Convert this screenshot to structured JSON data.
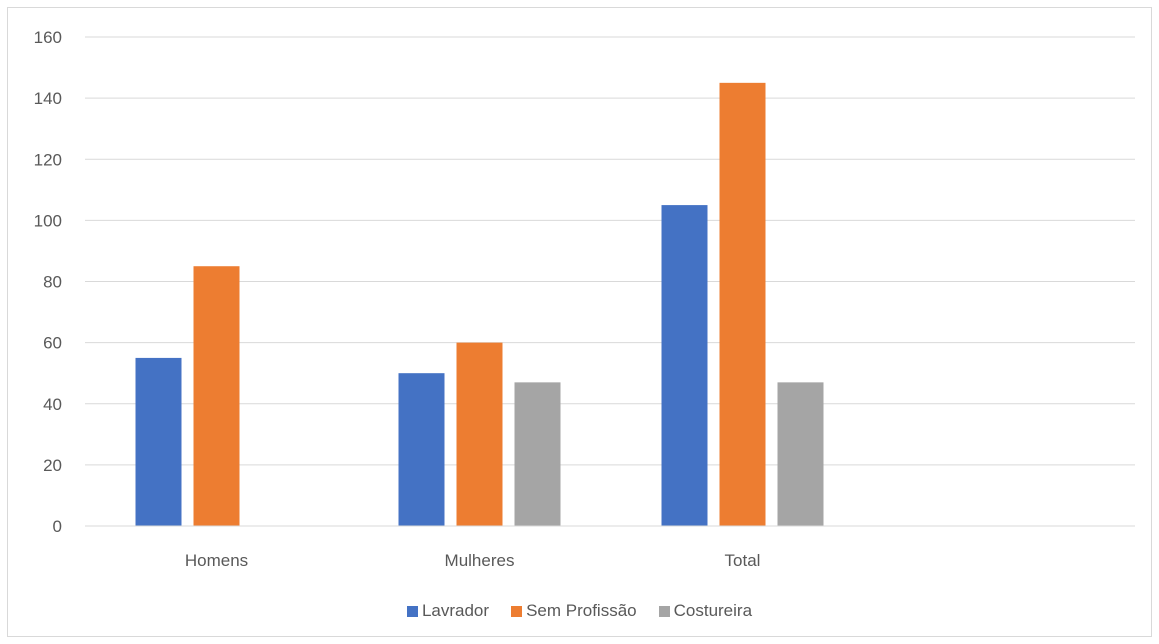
{
  "chart_data": {
    "type": "bar",
    "categories": [
      "Homens",
      "Mulheres",
      "Total"
    ],
    "series": [
      {
        "name": "Lavrador",
        "values": [
          55,
          50,
          105
        ],
        "color": "#4472c4"
      },
      {
        "name": "Sem Profissão",
        "values": [
          85,
          60,
          145
        ],
        "color": "#ed7d31"
      },
      {
        "name": "Costureira",
        "values": [
          null,
          47,
          47
        ],
        "color": "#a5a5a5"
      }
    ],
    "ylim": [
      0,
      160
    ],
    "yticks": [
      "0",
      "20",
      "40",
      "60",
      "80",
      "100",
      "120",
      "140",
      "160"
    ],
    "grid": true,
    "legend_position": "bottom",
    "title": "",
    "xlabel": "",
    "ylabel": ""
  }
}
